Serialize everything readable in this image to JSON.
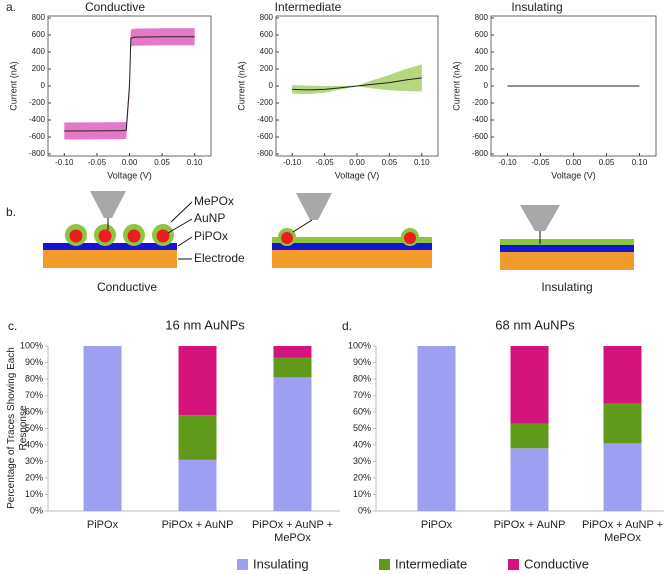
{
  "panels": [
    "a.",
    "b.",
    "c.",
    "d."
  ],
  "diagram": {
    "labels": [
      "MePOx",
      "AuNP",
      "PiPOx",
      "Electrode"
    ],
    "captions": [
      "Conductive",
      "Insulating"
    ]
  },
  "legend": true,
  "chart_data": [
    {
      "type": "line",
      "title": "Conductive",
      "x_label": "Voltage (V)",
      "y_label": "Current (nA)",
      "x": [
        -0.1,
        -0.05,
        -0.01,
        -0.005,
        0,
        0.002,
        0.005,
        0.01,
        0.05,
        0.1
      ],
      "values": [
        -530,
        -528,
        -525,
        -520,
        0,
        560,
        572,
        575,
        580,
        580
      ],
      "errors": [
        100,
        100,
        100,
        100,
        100,
        100,
        100,
        100,
        100,
        100
      ],
      "color": "#222222",
      "band_color": "#e060c0",
      "xlim": [
        -0.125,
        0.125
      ],
      "ylim": [
        -800,
        800
      ],
      "xticks": [
        {
          "value": -0.1,
          "label": "-0.10"
        },
        {
          "value": -0.05,
          "label": "-0.05"
        },
        {
          "value": 0,
          "label": "0.00"
        },
        {
          "value": 0.05,
          "label": "0.05"
        },
        {
          "value": 0.1,
          "label": "0.10"
        }
      ],
      "yticks": [
        -800,
        -600,
        -400,
        -200,
        0,
        200,
        400,
        600,
        800
      ]
    },
    {
      "type": "line",
      "title": "Intermediate",
      "x_label": "Voltage (V)",
      "y_label": "Current (nA)",
      "x": [
        -0.1,
        -0.075,
        -0.05,
        -0.025,
        0,
        0.025,
        0.05,
        0.075,
        0.1
      ],
      "values": [
        -40,
        -45,
        -40,
        -20,
        0,
        20,
        40,
        70,
        95
      ],
      "errors": [
        50,
        50,
        40,
        20,
        5,
        50,
        90,
        130,
        160
      ],
      "color": "#222222",
      "band_color": "#a9cf6a",
      "xlim": [
        -0.125,
        0.125
      ],
      "ylim": [
        -800,
        800
      ],
      "xticks": [
        {
          "value": -0.1,
          "label": "-0.10"
        },
        {
          "value": -0.05,
          "label": "-0.05"
        },
        {
          "value": 0,
          "label": "0.00"
        },
        {
          "value": 0.05,
          "label": "0.05"
        },
        {
          "value": 0.1,
          "label": "0.10"
        }
      ],
      "yticks": [
        -800,
        -600,
        -400,
        -200,
        0,
        200,
        400,
        600,
        800
      ]
    },
    {
      "type": "line",
      "title": "Insulating",
      "x_label": "Voltage (V)",
      "y_label": "Current (nA)",
      "x": [
        -0.1,
        0,
        0.1
      ],
      "values": [
        0,
        0,
        0
      ],
      "errors": [
        4,
        4,
        4
      ],
      "color": "#222222",
      "band_color": "#a9cf6a",
      "xlim": [
        -0.125,
        0.125
      ],
      "ylim": [
        -800,
        800
      ],
      "xticks": [
        {
          "value": -0.1,
          "label": "-0.10"
        },
        {
          "value": -0.05,
          "label": "-0.05"
        },
        {
          "value": 0,
          "label": "0.00"
        },
        {
          "value": 0.05,
          "label": "0.05"
        },
        {
          "value": 0.1,
          "label": "0.10"
        }
      ],
      "yticks": [
        -800,
        -600,
        -400,
        -200,
        0,
        200,
        400,
        600,
        800
      ]
    },
    {
      "type": "stacked_bar",
      "title": "16 nm AuNPs",
      "y_label": "Percentage of Traces Showing Each Response",
      "categories": [
        "PiPOx",
        "PiPOx + AuNP",
        "PiPOx + AuNP + MePOx"
      ],
      "series": [
        {
          "name": "Insulating",
          "color": "#9f9ff2",
          "values": [
            100,
            31,
            81
          ]
        },
        {
          "name": "Intermediate",
          "color": "#5f9a1b",
          "values": [
            0,
            27,
            12
          ]
        },
        {
          "name": "Conductive",
          "color": "#d4147c",
          "values": [
            0,
            42,
            7
          ]
        }
      ],
      "ylim": [
        0,
        100
      ],
      "yticks": [
        {
          "value": 0,
          "label": "0%"
        },
        {
          "value": 10,
          "label": "10%"
        },
        {
          "value": 20,
          "label": "20%"
        },
        {
          "value": 30,
          "label": "30%"
        },
        {
          "value": 40,
          "label": "40%"
        },
        {
          "value": 50,
          "label": "50%"
        },
        {
          "value": 60,
          "label": "60%"
        },
        {
          "value": 70,
          "label": "70%"
        },
        {
          "value": 80,
          "label": "80%"
        },
        {
          "value": 90,
          "label": "90%"
        },
        {
          "value": 100,
          "label": "100%"
        }
      ]
    },
    {
      "type": "stacked_bar",
      "title": "68 nm AuNPs",
      "categories": [
        "PiPOx",
        "PiPOx + AuNP",
        "PiPOx + AuNP + MePOx"
      ],
      "series": [
        {
          "color": "#9f9ff2",
          "values": [
            100,
            38,
            41
          ]
        },
        {
          "color": "#5f9a1b",
          "values": [
            0,
            15,
            24
          ]
        },
        {
          "color": "#d4147c",
          "values": [
            0,
            47,
            35
          ]
        }
      ],
      "ylim": [
        0,
        100
      ],
      "yticks": [
        {
          "value": 0,
          "label": "0%"
        },
        {
          "value": 10,
          "label": "10%"
        },
        {
          "value": 20,
          "label": "20%"
        },
        {
          "value": 30,
          "label": "30%"
        },
        {
          "value": 40,
          "label": "40%"
        },
        {
          "value": 50,
          "label": "50%"
        },
        {
          "value": 60,
          "label": "60%"
        },
        {
          "value": 70,
          "label": "70%"
        },
        {
          "value": 80,
          "label": "80%"
        },
        {
          "value": 90,
          "label": "90%"
        },
        {
          "value": 100,
          "label": "100%"
        }
      ]
    }
  ]
}
